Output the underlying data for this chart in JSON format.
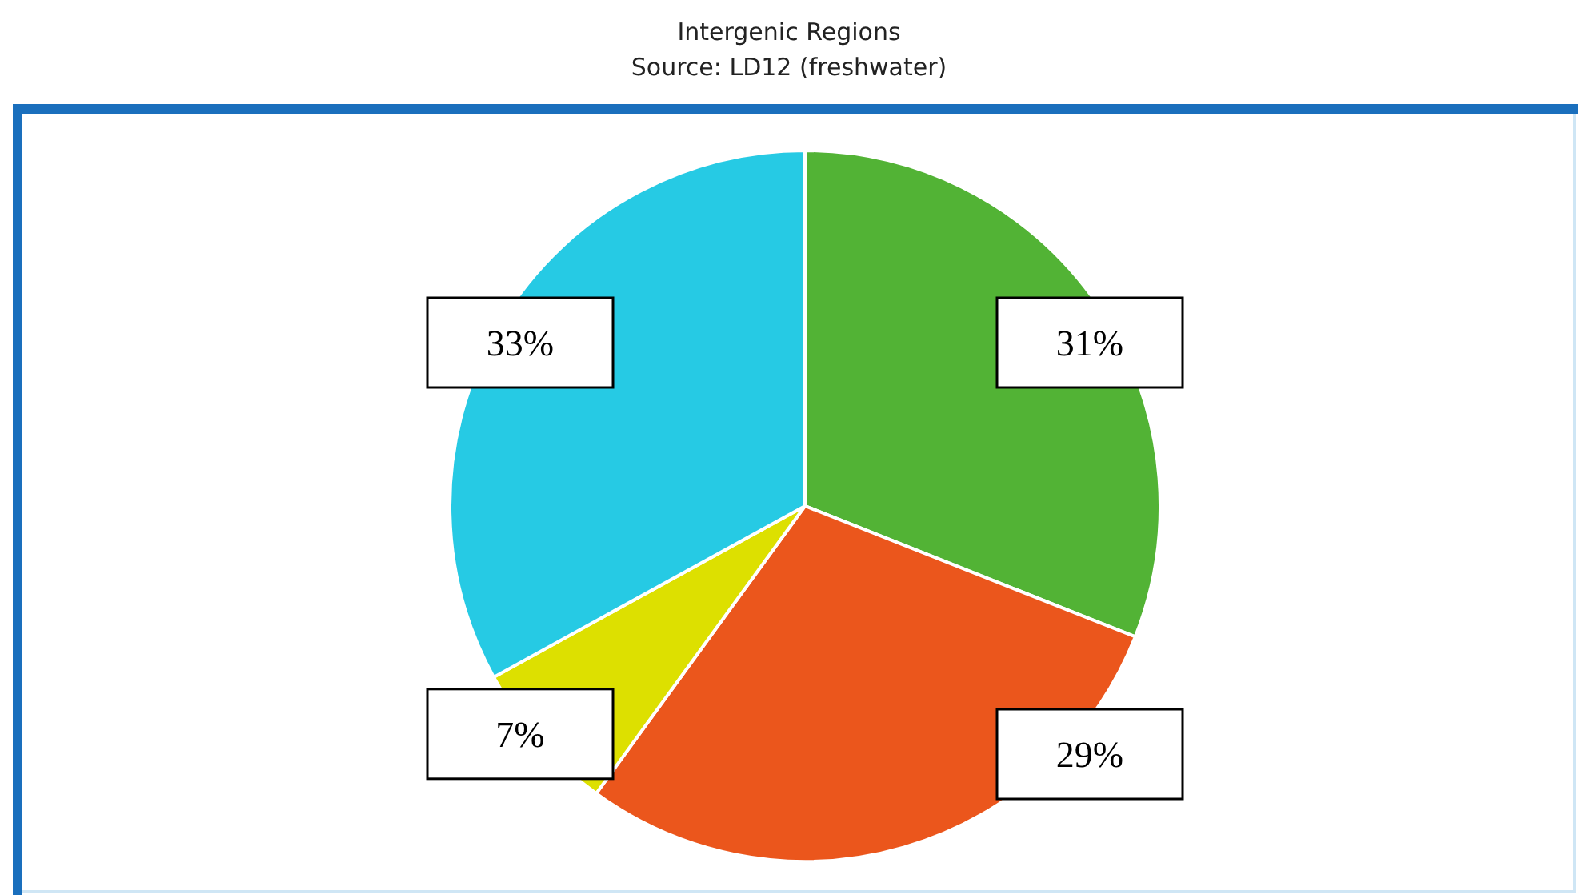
{
  "chart_data": {
    "type": "pie",
    "title": "Intergenic Regions",
    "subtitle": "Source: LD12 (freshwater)",
    "categories": [
      null,
      null,
      null,
      null
    ],
    "values": [
      31,
      29,
      7,
      33
    ],
    "colors": [
      "#52b335",
      "#eb561c",
      "#dde000",
      "#26cae4"
    ],
    "value_labels": [
      "31%",
      "29%",
      "7%",
      "33%"
    ]
  }
}
